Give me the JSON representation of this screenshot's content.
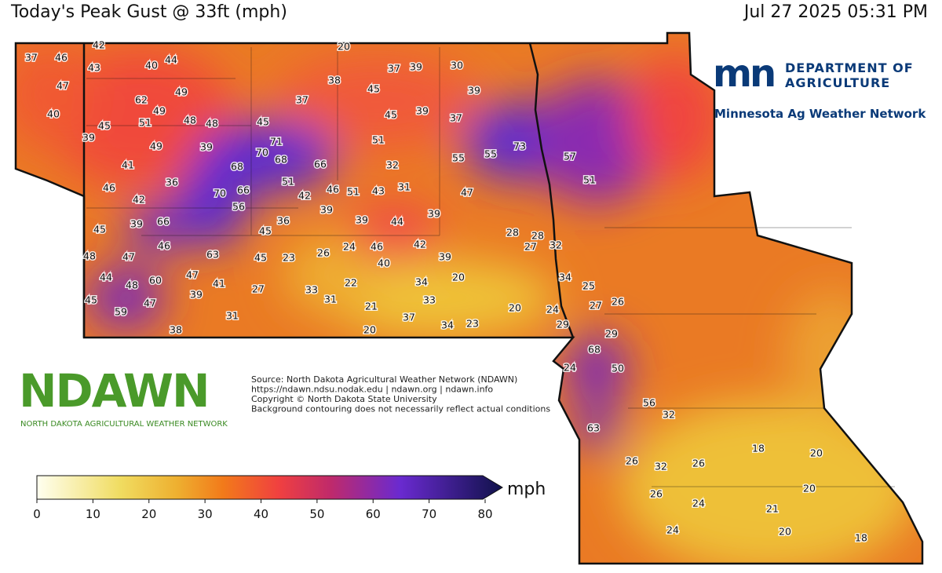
{
  "header": {
    "title": "Today's Peak Gust @ 33ft (mph)",
    "timestamp": "Jul 27 2025 05:31 PM"
  },
  "stations": {
    "values": [
      37,
      46,
      42,
      43,
      40,
      44,
      20,
      47,
      38,
      37,
      39,
      30,
      62,
      49,
      45,
      39,
      40,
      49,
      37,
      45,
      51,
      48,
      48,
      45,
      39,
      37,
      39,
      45,
      71,
      49,
      39,
      70,
      68,
      51,
      73,
      55,
      55,
      57,
      41,
      68,
      66,
      32,
      36,
      46,
      70,
      66,
      51,
      46,
      51,
      43,
      31,
      47,
      51,
      42,
      56,
      42,
      39,
      39,
      44,
      39,
      66,
      36,
      45,
      28,
      28,
      45,
      39,
      46,
      24,
      46,
      42,
      27,
      32,
      48,
      47,
      63,
      45,
      23,
      26,
      40,
      39,
      44,
      60,
      47,
      34,
      20,
      48,
      41,
      22,
      34,
      25,
      27,
      33,
      39,
      45,
      47,
      31,
      21,
      33,
      27,
      26,
      20,
      24,
      59,
      31,
      37,
      34,
      23,
      29,
      38,
      20,
      29,
      68,
      24,
      50,
      56,
      32,
      63,
      18,
      20,
      26,
      32,
      26,
      20,
      26,
      24,
      21,
      24,
      20,
      18
    ]
  },
  "colorbar": {
    "range": [
      0,
      80
    ],
    "ticks": [
      0,
      10,
      20,
      30,
      40,
      50,
      60,
      70,
      80
    ],
    "unit": "mph"
  },
  "source": {
    "lines": [
      "Source: North Dakota Agricultural Weather Network (NDAWN)",
      "https://ndawn.ndsu.nodak.edu | ndawn.org | ndawn.info",
      "Copyright © North Dakota State University",
      "Background contouring does not necessarily reflect actual conditions"
    ]
  },
  "ndawn_logo": {
    "name": "NDAWN",
    "subtitle": "NORTH DAKOTA AGRICULTURAL WEATHER NETWORK"
  },
  "mda_logo": {
    "mark": "mn",
    "line1": "DEPARTMENT OF",
    "line2": "AGRICULTURE",
    "network": "Minnesota Ag Weather Network"
  }
}
